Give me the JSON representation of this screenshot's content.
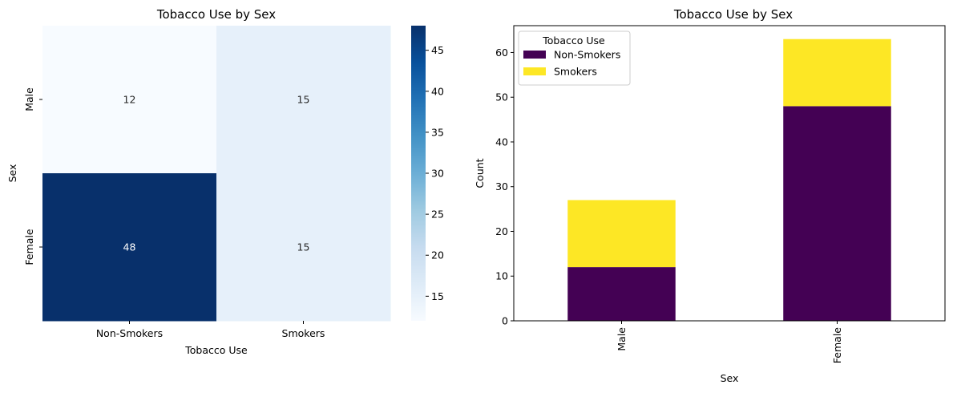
{
  "chart_data": [
    {
      "type": "heatmap",
      "title": "Tobacco Use by Sex",
      "xlabel": "Tobacco Use",
      "ylabel": "Sex",
      "x_categories": [
        "Non-Smokers",
        "Smokers"
      ],
      "y_categories": [
        "Male",
        "Female"
      ],
      "values": [
        [
          12,
          15
        ],
        [
          48,
          15
        ]
      ],
      "colormap": "Blues",
      "colorbar": {
        "min": 12,
        "max": 48,
        "ticks": [
          15,
          20,
          25,
          30,
          35,
          40,
          45
        ]
      }
    },
    {
      "type": "bar",
      "stacked": true,
      "title": "Tobacco Use by Sex",
      "xlabel": "Sex",
      "ylabel": "Count",
      "categories": [
        "Male",
        "Female"
      ],
      "series": [
        {
          "name": "Non-Smokers",
          "values": [
            12,
            48
          ],
          "color": "#440154"
        },
        {
          "name": "Smokers",
          "values": [
            15,
            15
          ],
          "color": "#fde725"
        }
      ],
      "ylim": [
        0,
        66
      ],
      "yticks": [
        0,
        10,
        20,
        30,
        40,
        50,
        60
      ],
      "legend": {
        "title": "Tobacco Use",
        "position": "upper-left"
      },
      "grid": false
    }
  ]
}
